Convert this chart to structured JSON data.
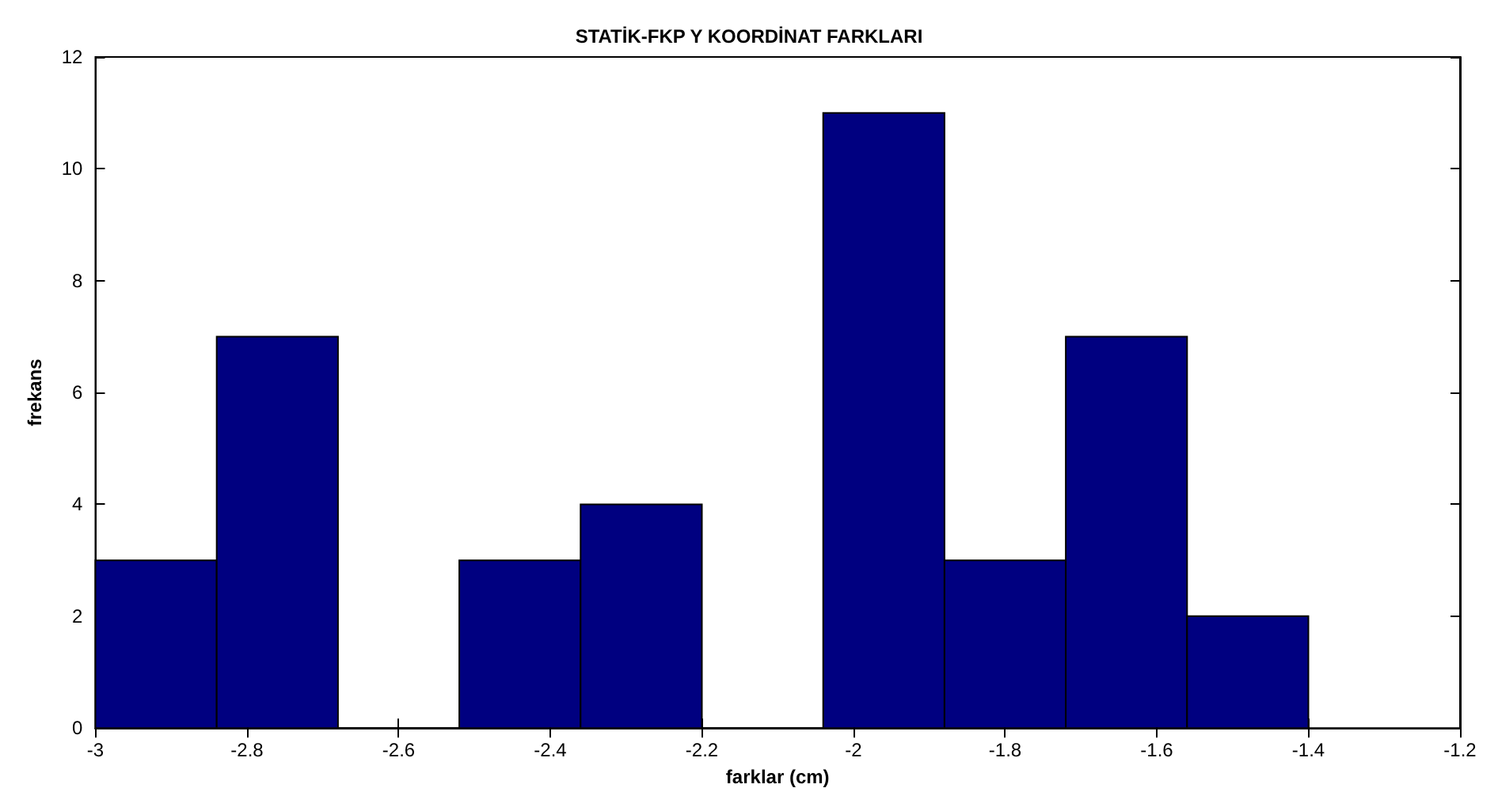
{
  "chart_data": {
    "type": "histogram",
    "title": "STATİK-FKP Y KOORDİNAT FARKLARI",
    "xlabel": "farklar (cm)",
    "ylabel": "frekans",
    "bins": [
      -3,
      -2.84,
      -2.68,
      -2.52,
      -2.36,
      -2.2,
      -2.04,
      -1.88,
      -1.72,
      -1.56,
      -1.4
    ],
    "values": [
      3,
      7,
      0,
      3,
      4,
      0,
      11,
      3,
      7,
      2
    ],
    "color": "#000080",
    "xlim": [
      -3,
      -1.2
    ],
    "xticks": [
      -3,
      -2.8,
      -2.6,
      -2.4,
      -2.2,
      -2,
      -1.8,
      -1.6,
      -1.4,
      -1.2
    ],
    "ylim": [
      0,
      12
    ],
    "yticks": [
      0,
      2,
      4,
      6,
      8,
      10,
      12
    ]
  }
}
